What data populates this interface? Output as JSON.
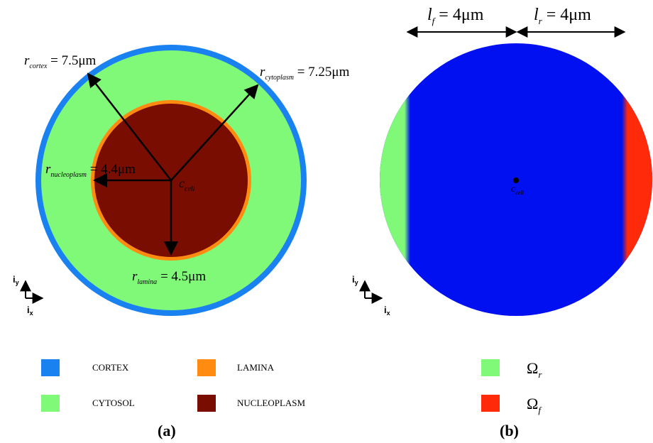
{
  "panel_a": {
    "label": "(a)",
    "r_cortex": {
      "sym": "r",
      "sub": "cortex",
      "eq": " = 7.5μm"
    },
    "r_cytoplasm": {
      "sym": "r",
      "sub": "cytoplasm",
      "eq": " = 7.25μm"
    },
    "r_nucleoplasm": {
      "sym": "r",
      "sub": "nucleoplasm",
      "eq": " = 4.4μm"
    },
    "r_lamina": {
      "sym": "r",
      "sub": "lamina",
      "eq": " = 4.5μm"
    },
    "center": {
      "sym": "c",
      "sub": "cell"
    },
    "axes": {
      "y": "i",
      "y_sub": "y",
      "x": "i",
      "x_sub": "x"
    },
    "legend": [
      {
        "label": "CORTEX",
        "color": "#1a82f0"
      },
      {
        "label": "LAMINA",
        "color": "#ff8c10"
      },
      {
        "label": "CYTOSOL",
        "color": "#80f978"
      },
      {
        "label": "NUCLEOPLASM",
        "color": "#7a0d02"
      }
    ]
  },
  "panel_b": {
    "label": "(b)",
    "l_f": {
      "sym": "l",
      "sub": "f",
      "eq": " = 4μm"
    },
    "l_r": {
      "sym": "l",
      "sub": "r",
      "eq": " = 4μm"
    },
    "center": {
      "sym": "c",
      "sub": "cell"
    },
    "axes": {
      "y": "i",
      "y_sub": "y",
      "x": "i",
      "x_sub": "x"
    },
    "legend": [
      {
        "sym": "Ω",
        "sub": "r",
        "color": "#80f978"
      },
      {
        "sym": "Ω",
        "sub": "f",
        "color": "#ff2a0a"
      }
    ]
  },
  "colors": {
    "cortex": "#1a82f0",
    "cytosol": "#80f978",
    "lamina": "#ff8c10",
    "nucleoplasm": "#7a0d02",
    "domain": "#0010f0",
    "omega_r": "#80f978",
    "omega_f": "#ff2a0a"
  }
}
